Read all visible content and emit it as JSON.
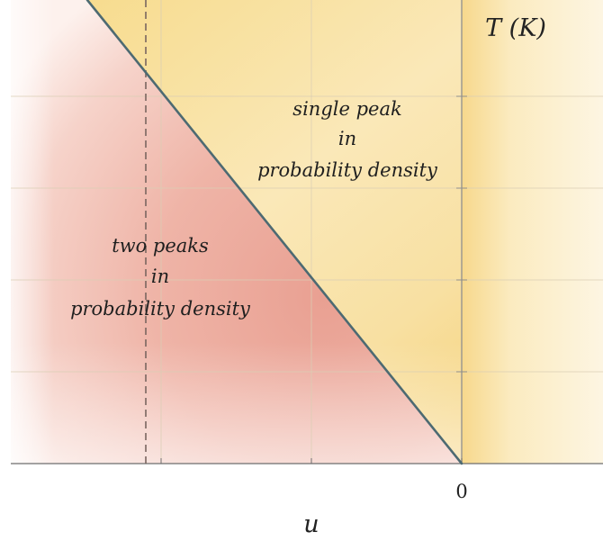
{
  "axes": {
    "y_label": "T (K)",
    "x_label": "u",
    "x_tick_zero": "0"
  },
  "regions": {
    "single_peak": {
      "line1": "single peak",
      "line2": "in",
      "line3": "probability density"
    },
    "two_peaks": {
      "line1": "two peaks",
      "line2": "in",
      "line3": "probability density"
    }
  },
  "colors": {
    "single_peak_region": "#f5d98a",
    "two_peaks_region": "#e9a296",
    "boundary_line": "#4d6a72",
    "dashed_line": "#7a6660",
    "grid": "#e2d8c4",
    "axis": "#8a8a8a"
  }
}
